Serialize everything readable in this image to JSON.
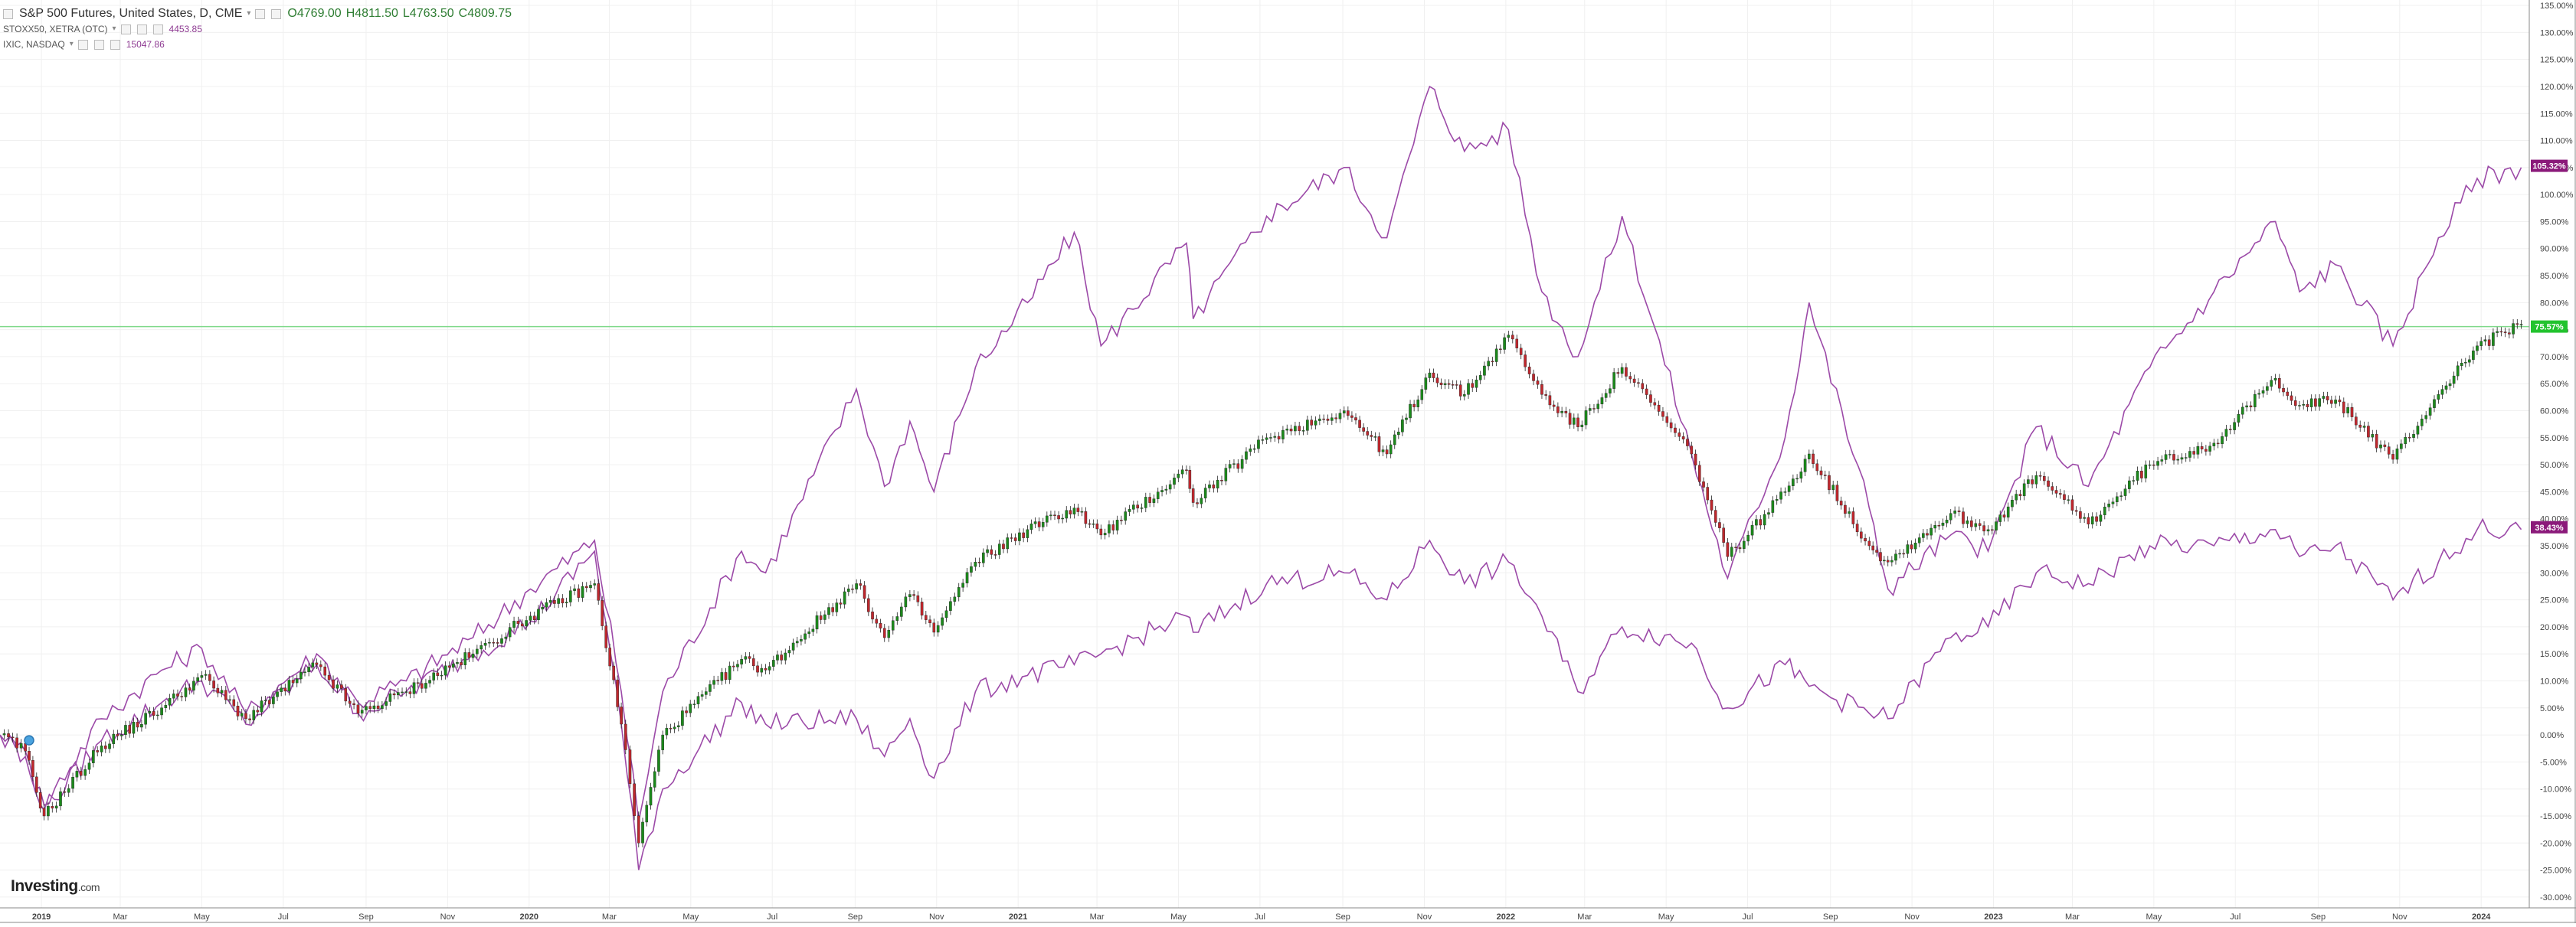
{
  "legend": {
    "main": {
      "symbol": "S&P 500 Futures, United States, D, CME",
      "open": "O4769.00",
      "high": "H4811.50",
      "low": "L4763.50",
      "close": "C4809.75"
    },
    "compare": [
      {
        "symbol": "STOXX50, XETRA (OTC)",
        "value": "4453.85"
      },
      {
        "symbol": "IXIC, NASDAQ",
        "value": "15047.86"
      }
    ]
  },
  "logo": {
    "brand": "Investing",
    "suffix": ".com"
  },
  "colors": {
    "compare_line": "#9c4aa8",
    "candle_up": "#1b8a1b",
    "candle_down": "#c0272d",
    "hline": "#7fd98a",
    "badge_green": "#22c32e",
    "badge_purple": "#8b1a7a",
    "grid": "#f0f0f0",
    "axis_text": "#444444"
  },
  "chart_data": {
    "type": "line",
    "x_axis_labels": [
      "2019",
      "Mar",
      "May",
      "Jul",
      "Sep",
      "Nov",
      "2020",
      "Mar",
      "May",
      "Jul",
      "Sep",
      "Nov",
      "2021",
      "Mar",
      "May",
      "Jul",
      "Sep",
      "Nov",
      "2022",
      "Mar",
      "May",
      "Jul",
      "Sep",
      "Nov",
      "2023",
      "Mar",
      "May",
      "Jul",
      "Sep",
      "Nov",
      "2024"
    ],
    "x_range": [
      "2018-12-01",
      "2024-02-06"
    ],
    "y_unit": "%",
    "ylim": [
      -32,
      136
    ],
    "y_ticks": [
      135,
      130,
      125,
      120,
      115,
      110,
      105,
      100,
      95,
      90,
      85,
      80,
      75,
      70,
      65,
      60,
      55,
      50,
      45,
      40,
      35,
      30,
      25,
      20,
      15,
      10,
      5,
      0,
      -5,
      -10,
      -15,
      -20,
      -25,
      -30
    ],
    "y_tick_labels": [
      "135.00%",
      "130.00%",
      "125.00%",
      "120.00%",
      "115.00%",
      "110.00%",
      "105.00%",
      "100.00%",
      "95.00%",
      "90.00%",
      "85.00%",
      "80.00%",
      "75.00%",
      "70.00%",
      "65.00%",
      "60.00%",
      "55.00%",
      "50.00%",
      "45.00%",
      "40.00%",
      "35.00%",
      "30.00%",
      "25.00%",
      "20.00%",
      "15.00%",
      "10.00%",
      "5.00%",
      "0.00%",
      "-5.00%",
      "-10.00%",
      "-15.00%",
      "-20.00%",
      "-25.00%",
      "-30.00%"
    ],
    "hline_value": 75.57,
    "badges": [
      {
        "label": "105.32%",
        "value": 105.32,
        "color": "#8b1a7a"
      },
      {
        "label": "75.57%",
        "value": 75.57,
        "color": "#22c32e"
      },
      {
        "label": "38.43%",
        "value": 38.43,
        "color": "#8b1a7a"
      }
    ],
    "series": [
      {
        "name": "S&P 500 Futures",
        "style": "candles",
        "x": [
          "2018-12-01",
          "2018-12-20",
          "2019-01-03",
          "2019-02-15",
          "2019-04-01",
          "2019-05-01",
          "2019-06-03",
          "2019-07-26",
          "2019-08-26",
          "2019-10-01",
          "2019-11-20",
          "2020-01-02",
          "2020-02-19",
          "2020-03-10",
          "2020-03-23",
          "2020-04-10",
          "2020-06-08",
          "2020-06-26",
          "2020-09-02",
          "2020-09-23",
          "2020-10-12",
          "2020-10-30",
          "2020-11-30",
          "2021-01-08",
          "2021-02-12",
          "2021-03-04",
          "2021-05-07",
          "2021-05-12",
          "2021-07-06",
          "2021-09-02",
          "2021-10-04",
          "2021-11-05",
          "2021-12-01",
          "2022-01-03",
          "2022-01-28",
          "2022-02-24",
          "2022-03-29",
          "2022-05-20",
          "2022-06-16",
          "2022-07-29",
          "2022-08-16",
          "2022-09-30",
          "2022-10-14",
          "2022-11-30",
          "2022-12-28",
          "2023-02-02",
          "2023-03-13",
          "2023-04-28",
          "2023-06-15",
          "2023-07-31",
          "2023-08-18",
          "2023-09-14",
          "2023-10-27",
          "2023-11-30",
          "2023-12-29",
          "2024-01-31"
        ],
        "y": [
          0,
          -3,
          -15,
          -2,
          5,
          11,
          3,
          13,
          4,
          8,
          15,
          22,
          28,
          2,
          -20,
          0,
          14,
          12,
          28,
          18,
          26,
          19,
          32,
          38,
          42,
          37,
          49,
          43,
          55,
          60,
          52,
          67,
          63,
          74,
          63,
          57,
          68,
          52,
          33,
          45,
          52,
          35,
          32,
          41,
          38,
          48,
          39,
          50,
          54,
          66,
          61,
          62,
          51,
          63,
          72,
          76
        ]
      },
      {
        "name": "IXIC, NASDAQ",
        "style": "line",
        "x": [
          "2018-12-01",
          "2018-12-20",
          "2019-01-03",
          "2019-02-15",
          "2019-04-01",
          "2019-05-01",
          "2019-06-03",
          "2019-07-26",
          "2019-08-26",
          "2019-10-01",
          "2019-11-20",
          "2020-01-02",
          "2020-02-19",
          "2020-03-10",
          "2020-03-23",
          "2020-04-10",
          "2020-06-08",
          "2020-06-26",
          "2020-09-02",
          "2020-09-23",
          "2020-10-12",
          "2020-10-30",
          "2020-11-30",
          "2021-01-08",
          "2021-02-12",
          "2021-03-04",
          "2021-05-07",
          "2021-05-12",
          "2021-07-06",
          "2021-09-02",
          "2021-10-04",
          "2021-11-05",
          "2021-12-01",
          "2022-01-03",
          "2022-01-28",
          "2022-02-24",
          "2022-03-29",
          "2022-05-20",
          "2022-06-16",
          "2022-07-29",
          "2022-08-16",
          "2022-09-30",
          "2022-10-14",
          "2022-11-30",
          "2022-12-28",
          "2023-02-02",
          "2023-03-13",
          "2023-04-28",
          "2023-06-15",
          "2023-07-31",
          "2023-08-18",
          "2023-09-14",
          "2023-10-27",
          "2023-11-30",
          "2023-12-29",
          "2024-01-31"
        ],
        "y": [
          0,
          -4,
          -13,
          3,
          12,
          16,
          4,
          15,
          6,
          10,
          18,
          27,
          36,
          8,
          -16,
          8,
          34,
          30,
          64,
          46,
          58,
          45,
          68,
          80,
          93,
          72,
          91,
          77,
          96,
          105,
          92,
          120,
          108,
          112,
          82,
          70,
          96,
          52,
          29,
          55,
          80,
          42,
          27,
          37,
          34,
          57,
          46,
          68,
          82,
          95,
          82,
          87,
          72,
          92,
          103,
          105
        ]
      },
      {
        "name": "STOXX50, XETRA (OTC)",
        "style": "line",
        "x": [
          "2018-12-01",
          "2018-12-20",
          "2019-01-03",
          "2019-02-15",
          "2019-04-01",
          "2019-05-01",
          "2019-06-03",
          "2019-07-26",
          "2019-08-26",
          "2019-10-01",
          "2019-11-20",
          "2020-01-02",
          "2020-02-19",
          "2020-03-10",
          "2020-03-23",
          "2020-04-10",
          "2020-06-08",
          "2020-06-26",
          "2020-09-02",
          "2020-09-23",
          "2020-10-12",
          "2020-10-30",
          "2020-11-30",
          "2021-01-08",
          "2021-02-12",
          "2021-03-04",
          "2021-05-07",
          "2021-05-12",
          "2021-07-06",
          "2021-09-02",
          "2021-10-04",
          "2021-11-05",
          "2021-12-01",
          "2022-01-03",
          "2022-01-28",
          "2022-02-24",
          "2022-03-29",
          "2022-05-20",
          "2022-06-16",
          "2022-07-29",
          "2022-08-16",
          "2022-09-30",
          "2022-10-14",
          "2022-11-30",
          "2022-12-28",
          "2023-02-02",
          "2023-03-13",
          "2023-04-28",
          "2023-06-15",
          "2023-07-31",
          "2023-08-18",
          "2023-09-14",
          "2023-10-27",
          "2023-11-30",
          "2023-12-29",
          "2024-01-31"
        ],
        "y": [
          0,
          -3,
          -14,
          -1,
          6,
          10,
          2,
          13,
          4,
          8,
          15,
          21,
          34,
          2,
          -25,
          -10,
          6,
          2,
          3,
          -4,
          3,
          -8,
          8,
          11,
          13,
          15,
          22,
          19,
          28,
          30,
          25,
          36,
          28,
          32,
          22,
          8,
          20,
          17,
          5,
          13,
          9,
          4,
          3,
          18,
          20,
          30,
          28,
          35,
          35,
          38,
          33,
          35,
          25,
          32,
          38,
          38
        ]
      }
    ]
  }
}
